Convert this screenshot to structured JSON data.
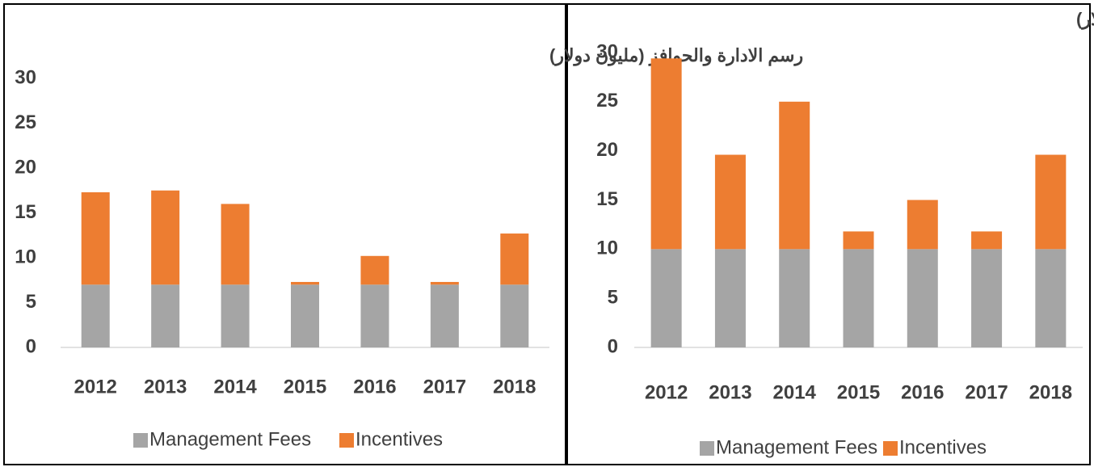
{
  "chart_data": [
    {
      "type": "bar",
      "stacked": true,
      "title": "رسم الادارة والحوافز (مليون دولار)",
      "categories": [
        "2012",
        "2013",
        "2014",
        "2015",
        "2016",
        "2017",
        "2018"
      ],
      "series": [
        {
          "name": "Management Fees",
          "color": "#a5a5a5",
          "values": [
            7,
            7,
            7,
            7,
            7,
            7,
            7
          ]
        },
        {
          "name": "Incentives",
          "color": "#ed7d31",
          "values": [
            10.3,
            10.5,
            9,
            0.3,
            3.2,
            0.3,
            5.7
          ]
        }
      ],
      "ylim": [
        0,
        30
      ],
      "yticks": [
        0,
        5,
        10,
        15,
        20,
        25,
        30
      ],
      "legend": "bottom"
    },
    {
      "type": "bar",
      "stacked": true,
      "title": "رسم الادارة والحوافز (مليون دولار)",
      "categories": [
        "2012",
        "2013",
        "2014",
        "2015",
        "2016",
        "2017",
        "2018"
      ],
      "series": [
        {
          "name": "Management Fees",
          "color": "#a5a5a5",
          "values": [
            10,
            10,
            10,
            10,
            10,
            10,
            10
          ]
        },
        {
          "name": "Incentives",
          "color": "#ed7d31",
          "values": [
            19.4,
            9.6,
            15,
            1.8,
            5,
            1.8,
            9.6
          ]
        }
      ],
      "ylim": [
        0,
        30
      ],
      "yticks": [
        0,
        5,
        10,
        15,
        20,
        25,
        30
      ],
      "legend": "bottom"
    }
  ]
}
